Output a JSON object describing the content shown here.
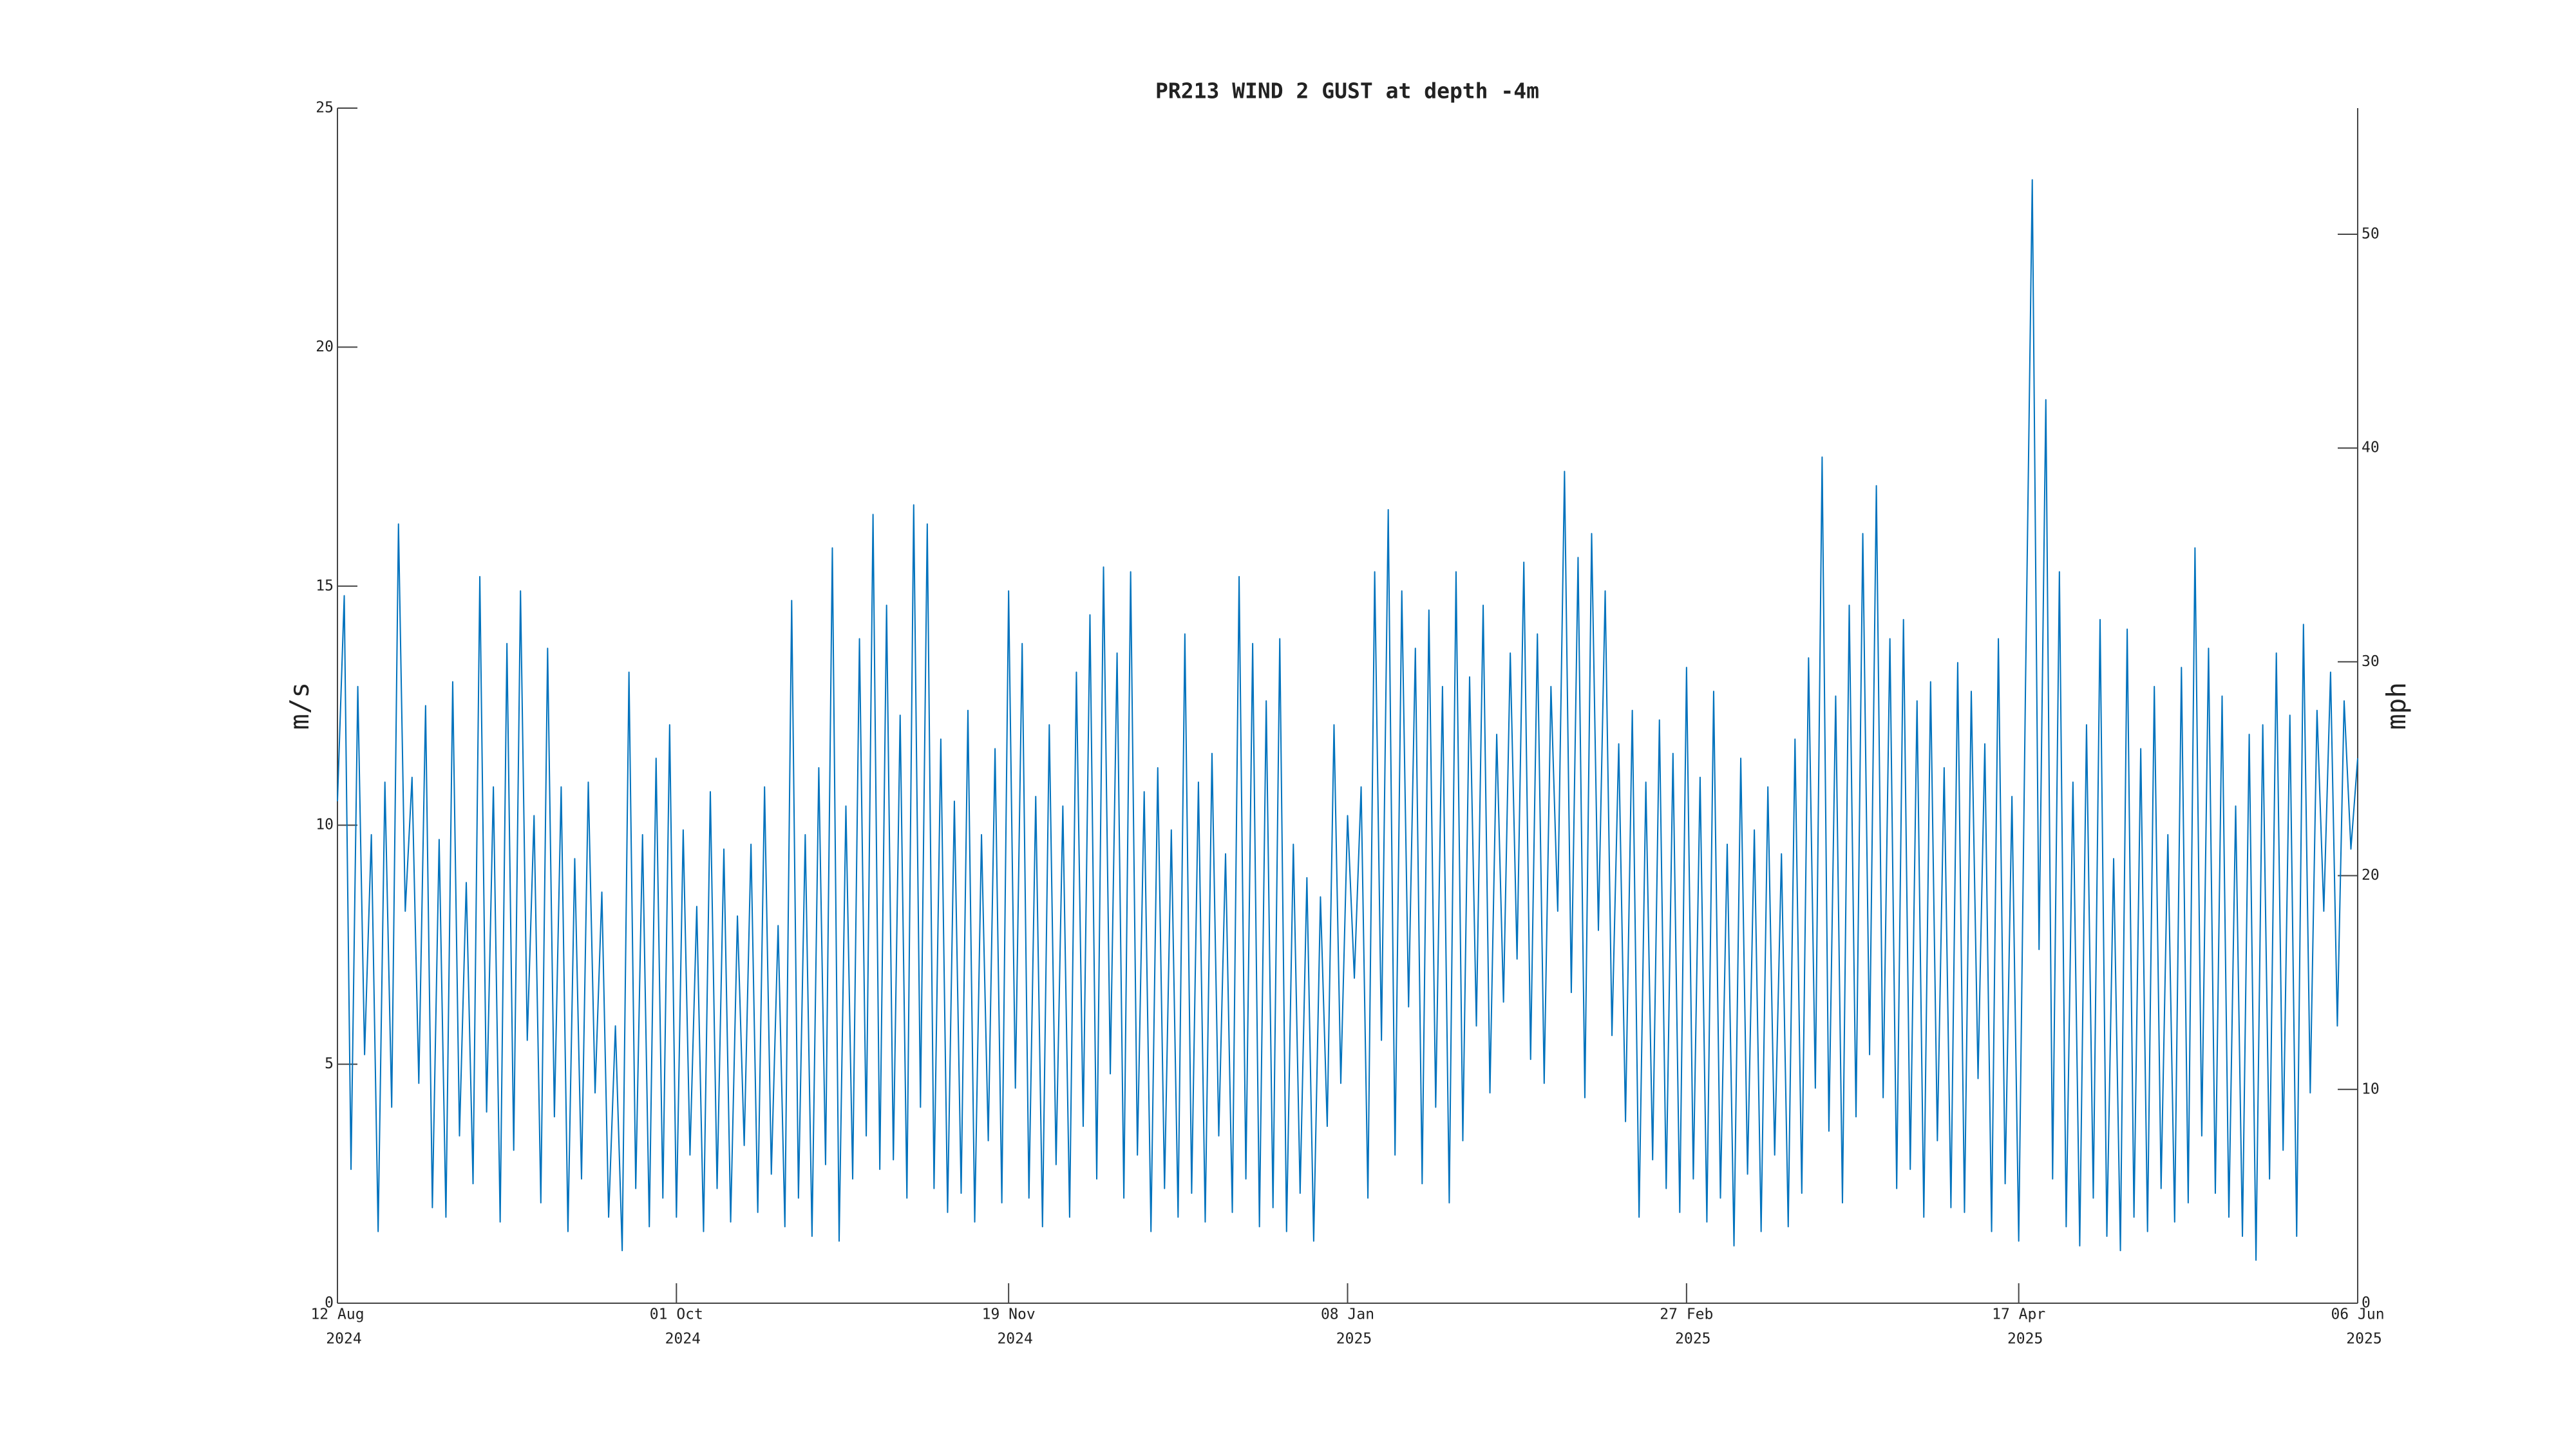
{
  "chart_data": {
    "type": "line",
    "title": "PR213 WIND 2 GUST at depth -4m",
    "ylabel": "m/s",
    "y2label": "mph",
    "xlim": [
      "2024-08-12",
      "2025-06-06"
    ],
    "xticks": [
      {
        "value": "2024-08-12",
        "label": [
          "12 Aug",
          "2024"
        ]
      },
      {
        "value": "2024-10-01",
        "label": [
          "01 Oct",
          "2024"
        ]
      },
      {
        "value": "2024-11-19",
        "label": [
          "19 Nov",
          "2024"
        ]
      },
      {
        "value": "2025-01-08",
        "label": [
          "08 Jan",
          "2025"
        ]
      },
      {
        "value": "2025-02-27",
        "label": [
          "27 Feb",
          "2025"
        ]
      },
      {
        "value": "2025-04-17",
        "label": [
          "17 Apr",
          "2025"
        ]
      },
      {
        "value": "2025-06-06",
        "label": [
          "06 Jun",
          "2025"
        ]
      }
    ],
    "ylim": [
      0,
      25
    ],
    "yticks": [
      0,
      5,
      10,
      15,
      20,
      25
    ],
    "y2lim": [
      0,
      55.9
    ],
    "y2ticks": [
      0,
      10,
      20,
      30,
      40,
      50
    ],
    "grid": false,
    "x": [
      "2024-08-12",
      "2024-08-13",
      "2024-08-14",
      "2024-08-15",
      "2024-08-16",
      "2024-08-17",
      "2024-08-18",
      "2024-08-19",
      "2024-08-20",
      "2024-08-21",
      "2024-08-22",
      "2024-08-23",
      "2024-08-24",
      "2024-08-25",
      "2024-08-26",
      "2024-08-27",
      "2024-08-28",
      "2024-08-29",
      "2024-08-30",
      "2024-08-31",
      "2024-09-01",
      "2024-09-02",
      "2024-09-03",
      "2024-09-04",
      "2024-09-05",
      "2024-09-06",
      "2024-09-07",
      "2024-09-08",
      "2024-09-09",
      "2024-09-10",
      "2024-09-11",
      "2024-09-12",
      "2024-09-13",
      "2024-09-14",
      "2024-09-15",
      "2024-09-16",
      "2024-09-17",
      "2024-09-18",
      "2024-09-19",
      "2024-09-20",
      "2024-09-21",
      "2024-09-22",
      "2024-09-23",
      "2024-09-24",
      "2024-09-25",
      "2024-09-26",
      "2024-09-27",
      "2024-09-28",
      "2024-09-29",
      "2024-09-30",
      "2024-10-01",
      "2024-10-02",
      "2024-10-03",
      "2024-10-04",
      "2024-10-05",
      "2024-10-06",
      "2024-10-07",
      "2024-10-08",
      "2024-10-09",
      "2024-10-10",
      "2024-10-11",
      "2024-10-12",
      "2024-10-13",
      "2024-10-14",
      "2024-10-15",
      "2024-10-16",
      "2024-10-17",
      "2024-10-18",
      "2024-10-19",
      "2024-10-20",
      "2024-10-21",
      "2024-10-22",
      "2024-10-23",
      "2024-10-24",
      "2024-10-25",
      "2024-10-26",
      "2024-10-27",
      "2024-10-28",
      "2024-10-29",
      "2024-10-30",
      "2024-10-31",
      "2024-11-01",
      "2024-11-02",
      "2024-11-03",
      "2024-11-04",
      "2024-11-05",
      "2024-11-06",
      "2024-11-07",
      "2024-11-08",
      "2024-11-09",
      "2024-11-10",
      "2024-11-11",
      "2024-11-12",
      "2024-11-13",
      "2024-11-14",
      "2024-11-15",
      "2024-11-16",
      "2024-11-17",
      "2024-11-18",
      "2024-11-19",
      "2024-11-20",
      "2024-11-21",
      "2024-11-22",
      "2024-11-23",
      "2024-11-24",
      "2024-11-25",
      "2024-11-26",
      "2024-11-27",
      "2024-11-28",
      "2024-11-29",
      "2024-11-30",
      "2024-12-01",
      "2024-12-02",
      "2024-12-03",
      "2024-12-04",
      "2024-12-05",
      "2024-12-06",
      "2024-12-07",
      "2024-12-08",
      "2024-12-09",
      "2024-12-10",
      "2024-12-11",
      "2024-12-12",
      "2024-12-13",
      "2024-12-14",
      "2024-12-15",
      "2024-12-16",
      "2024-12-17",
      "2024-12-18",
      "2024-12-19",
      "2024-12-20",
      "2024-12-21",
      "2024-12-22",
      "2024-12-23",
      "2024-12-24",
      "2024-12-25",
      "2024-12-26",
      "2024-12-27",
      "2024-12-28",
      "2024-12-29",
      "2024-12-30",
      "2024-12-31",
      "2025-01-01",
      "2025-01-02",
      "2025-01-03",
      "2025-01-04",
      "2025-01-05",
      "2025-01-06",
      "2025-01-07",
      "2025-01-08",
      "2025-01-09",
      "2025-01-10",
      "2025-01-11",
      "2025-01-12",
      "2025-01-13",
      "2025-01-14",
      "2025-01-15",
      "2025-01-16",
      "2025-01-17",
      "2025-01-18",
      "2025-01-19",
      "2025-01-20",
      "2025-01-21",
      "2025-01-22",
      "2025-01-23",
      "2025-01-24",
      "2025-01-25",
      "2025-01-26",
      "2025-01-27",
      "2025-01-28",
      "2025-01-29",
      "2025-01-30",
      "2025-01-31",
      "2025-02-01",
      "2025-02-02",
      "2025-02-03",
      "2025-02-04",
      "2025-02-05",
      "2025-02-06",
      "2025-02-07",
      "2025-02-08",
      "2025-02-09",
      "2025-02-10",
      "2025-02-11",
      "2025-02-12",
      "2025-02-13",
      "2025-02-14",
      "2025-02-15",
      "2025-02-16",
      "2025-02-17",
      "2025-02-18",
      "2025-02-19",
      "2025-02-20",
      "2025-02-21",
      "2025-02-22",
      "2025-02-23",
      "2025-02-24",
      "2025-02-25",
      "2025-02-26",
      "2025-02-27",
      "2025-02-28",
      "2025-03-01",
      "2025-03-02",
      "2025-03-03",
      "2025-03-04",
      "2025-03-05",
      "2025-03-06",
      "2025-03-07",
      "2025-03-08",
      "2025-03-09",
      "2025-03-10",
      "2025-03-11",
      "2025-03-12",
      "2025-03-13",
      "2025-03-14",
      "2025-03-15",
      "2025-03-16",
      "2025-03-17",
      "2025-03-18",
      "2025-03-19",
      "2025-03-20",
      "2025-03-21",
      "2025-03-22",
      "2025-03-23",
      "2025-03-24",
      "2025-03-25",
      "2025-03-26",
      "2025-03-27",
      "2025-03-28",
      "2025-03-29",
      "2025-03-30",
      "2025-03-31",
      "2025-04-01",
      "2025-04-02",
      "2025-04-03",
      "2025-04-04",
      "2025-04-05",
      "2025-04-06",
      "2025-04-07",
      "2025-04-08",
      "2025-04-09",
      "2025-04-10",
      "2025-04-11",
      "2025-04-12",
      "2025-04-13",
      "2025-04-14",
      "2025-04-15",
      "2025-04-16",
      "2025-04-17",
      "2025-04-18",
      "2025-04-19",
      "2025-04-20",
      "2025-04-21",
      "2025-04-22",
      "2025-04-23",
      "2025-04-24",
      "2025-04-25",
      "2025-04-26",
      "2025-04-27",
      "2025-04-28",
      "2025-04-29",
      "2025-04-30",
      "2025-05-01",
      "2025-05-02",
      "2025-05-03",
      "2025-05-04",
      "2025-05-05",
      "2025-05-06",
      "2025-05-07",
      "2025-05-08",
      "2025-05-09",
      "2025-05-10",
      "2025-05-11",
      "2025-05-12",
      "2025-05-13",
      "2025-05-14",
      "2025-05-15",
      "2025-05-16",
      "2025-05-17",
      "2025-05-18",
      "2025-05-19",
      "2025-05-20",
      "2025-05-21",
      "2025-05-22",
      "2025-05-23",
      "2025-05-24",
      "2025-05-25",
      "2025-05-26",
      "2025-05-27",
      "2025-05-28",
      "2025-05-29",
      "2025-05-30",
      "2025-05-31",
      "2025-06-01",
      "2025-06-02",
      "2025-06-03",
      "2025-06-04",
      "2025-06-05",
      "2025-06-06"
    ],
    "series": [
      {
        "color": "#0072bd",
        "values": [
          10.5,
          14.8,
          2.8,
          12.9,
          5.2,
          9.8,
          1.5,
          10.9,
          4.1,
          16.3,
          8.2,
          11.0,
          4.6,
          12.5,
          2.0,
          9.7,
          1.8,
          13.0,
          3.5,
          8.8,
          2.5,
          15.2,
          4.0,
          10.8,
          1.7,
          13.8,
          3.2,
          14.9,
          5.5,
          10.2,
          2.1,
          13.7,
          3.9,
          10.8,
          1.5,
          9.3,
          2.6,
          10.9,
          4.4,
          8.6,
          1.8,
          5.8,
          1.1,
          13.2,
          2.4,
          9.8,
          1.6,
          11.4,
          2.2,
          12.1,
          1.8,
          9.9,
          3.1,
          8.3,
          1.5,
          10.7,
          2.4,
          9.5,
          1.7,
          8.1,
          3.3,
          9.6,
          1.9,
          10.8,
          2.7,
          7.9,
          1.6,
          14.7,
          2.2,
          9.8,
          1.4,
          11.2,
          2.9,
          15.8,
          1.3,
          10.4,
          2.6,
          13.9,
          3.5,
          16.5,
          2.8,
          14.6,
          3.0,
          12.3,
          2.2,
          16.7,
          4.1,
          16.3,
          2.4,
          11.8,
          1.9,
          10.5,
          2.3,
          12.4,
          1.7,
          9.8,
          3.4,
          11.6,
          2.1,
          14.9,
          4.5,
          13.8,
          2.2,
          10.6,
          1.6,
          12.1,
          2.9,
          10.4,
          1.8,
          13.2,
          3.7,
          14.4,
          2.6,
          15.4,
          4.8,
          13.6,
          2.2,
          15.3,
          3.1,
          10.7,
          1.5,
          11.2,
          2.4,
          9.9,
          1.8,
          14.0,
          2.3,
          10.9,
          1.7,
          11.5,
          3.5,
          9.4,
          1.9,
          15.2,
          2.6,
          13.8,
          1.6,
          12.6,
          2.0,
          13.9,
          1.5,
          9.6,
          2.3,
          8.9,
          1.3,
          8.5,
          3.7,
          12.1,
          4.6,
          10.2,
          6.8,
          10.8,
          2.2,
          15.3,
          5.5,
          16.6,
          3.1,
          14.9,
          6.2,
          13.7,
          2.5,
          14.5,
          4.1,
          12.9,
          2.1,
          15.3,
          3.4,
          13.1,
          5.8,
          14.6,
          4.4,
          11.9,
          6.3,
          13.6,
          7.2,
          15.5,
          5.1,
          14.0,
          4.6,
          12.9,
          8.2,
          17.4,
          6.5,
          15.6,
          4.3,
          16.1,
          7.8,
          14.9,
          5.6,
          11.7,
          3.8,
          12.4,
          1.8,
          10.9,
          3.0,
          12.2,
          2.4,
          11.5,
          1.9,
          13.3,
          2.6,
          11.0,
          1.7,
          12.8,
          2.2,
          9.6,
          1.2,
          11.4,
          2.7,
          9.9,
          1.5,
          10.8,
          3.1,
          9.4,
          1.6,
          11.8,
          2.3,
          13.5,
          4.5,
          17.7,
          3.6,
          12.7,
          2.1,
          14.6,
          3.9,
          16.1,
          5.2,
          17.1,
          4.3,
          13.9,
          2.4,
          14.3,
          2.8,
          12.6,
          1.8,
          13.0,
          3.4,
          11.2,
          2.0,
          13.4,
          1.9,
          12.8,
          4.7,
          11.7,
          1.5,
          13.9,
          2.5,
          10.6,
          1.3,
          12.9,
          23.5,
          7.4,
          18.9,
          2.6,
          15.3,
          1.6,
          10.9,
          1.2,
          12.1,
          2.2,
          14.3,
          1.4,
          9.3,
          1.1,
          14.1,
          1.8,
          11.6,
          1.5,
          12.9,
          2.4,
          9.8,
          1.7,
          13.3,
          2.1,
          15.8,
          3.5,
          13.7,
          2.3,
          12.7,
          1.8,
          10.4,
          1.4,
          11.9,
          0.9,
          12.1,
          2.6,
          13.6,
          3.2,
          12.3,
          1.4,
          14.2,
          4.4,
          12.4,
          8.2,
          13.2,
          5.8,
          12.6,
          9.5,
          11.4
        ]
      }
    ]
  }
}
